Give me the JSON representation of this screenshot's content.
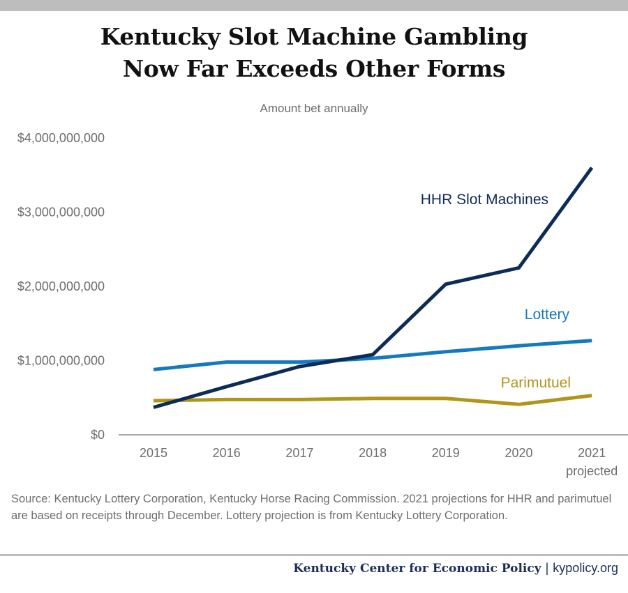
{
  "title_lines": [
    "Kentucky Slot Machine Gambling",
    "Now Far Exceeds Other Forms"
  ],
  "chart_data": {
    "type": "line",
    "title": "Kentucky Slot Machine Gambling Now Far Exceeds Other Forms",
    "subtitle": "Amount bet annually",
    "x": [
      "2015",
      "2016",
      "2017",
      "2018",
      "2019",
      "2020",
      "2021"
    ],
    "x_sublabels": [
      "",
      "",
      "",
      "",
      "",
      "",
      "projected"
    ],
    "y_ticks": [
      "$0",
      "$1,000,000,000",
      "$2,000,000,000",
      "$3,000,000,000",
      "$4,000,000,000"
    ],
    "y_tick_values": [
      0,
      1000000000,
      2000000000,
      3000000000,
      4000000000
    ],
    "ylim": [
      0,
      4000000000
    ],
    "grid": false,
    "series": [
      {
        "name": "HHR Slot Machines",
        "color": "#0d2b57",
        "values": [
          370000000,
          650000000,
          920000000,
          1080000000,
          2030000000,
          2250000000,
          3600000000
        ]
      },
      {
        "name": "Lottery",
        "color": "#1479be",
        "values": [
          880000000,
          980000000,
          980000000,
          1030000000,
          1120000000,
          1200000000,
          1270000000
        ]
      },
      {
        "name": "Parimutuel",
        "color": "#b1951a",
        "values": [
          460000000,
          475000000,
          475000000,
          490000000,
          490000000,
          410000000,
          530000000
        ]
      }
    ]
  },
  "source_text": "Source:  Kentucky Lottery Corporation, Kentucky Horse Racing Commission. 2021 projections for HHR and parimutuel are based on receipts through December. Lottery projection is from Kentucky Lottery Corporation.",
  "footer": {
    "org": "Kentucky Center for Economic Policy",
    "separator": "|",
    "url": "kypolicy.org"
  }
}
